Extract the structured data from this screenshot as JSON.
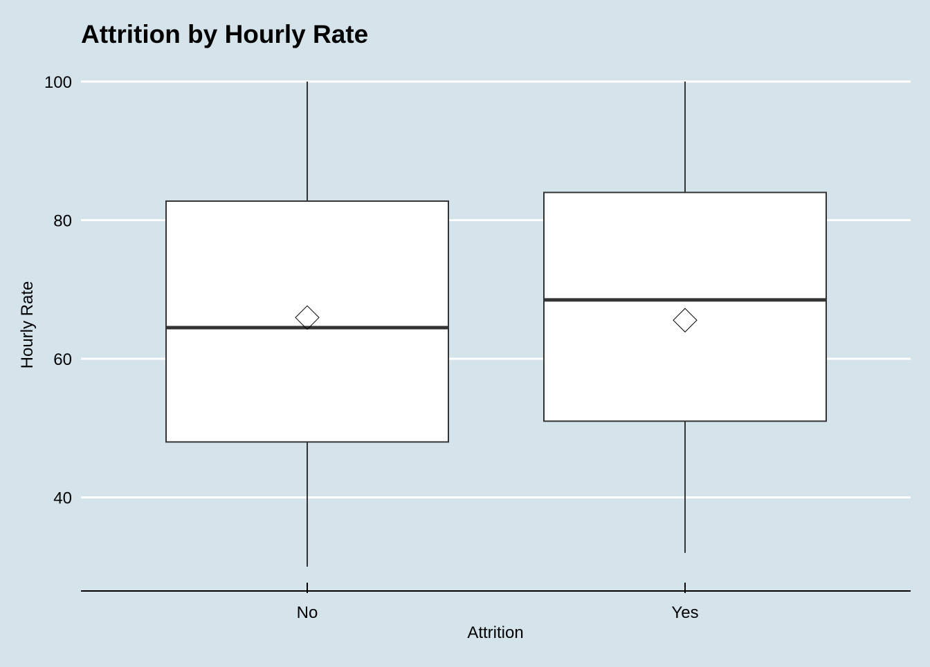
{
  "chart_data": {
    "type": "boxplot",
    "title": "Attrition by Hourly Rate",
    "xlabel": "Attrition",
    "ylabel": "Hourly Rate",
    "categories": [
      "No",
      "Yes"
    ],
    "boxes": [
      {
        "category": "No",
        "min": 30,
        "q1": 48,
        "median": 64.5,
        "q3": 82.75,
        "max": 100,
        "mean": 65.95
      },
      {
        "category": "Yes",
        "min": 32,
        "q1": 51,
        "median": 68.5,
        "q3": 84,
        "max": 100,
        "mean": 65.57
      }
    ],
    "yticks": [
      40,
      60,
      80,
      100
    ],
    "ylim": [
      26.5,
      100
    ],
    "grid": {
      "horizontal": true,
      "vertical": false
    },
    "colors": {
      "background": "#d5e3eb",
      "gridline": "#ffffff",
      "box_fill": "#ffffff",
      "box_stroke": "#333333",
      "median_line": "#333333",
      "axis_line": "#000000"
    }
  }
}
